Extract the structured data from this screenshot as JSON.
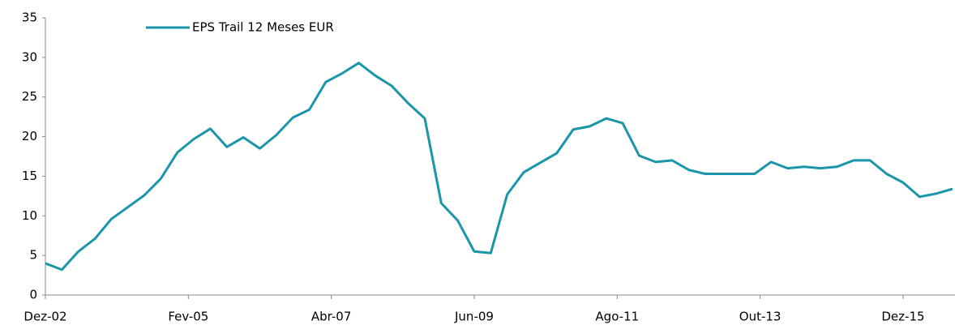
{
  "chart_data": {
    "type": "line",
    "x": [
      0,
      3,
      6,
      9,
      12,
      15,
      18,
      21,
      24,
      27,
      30,
      33,
      36,
      39,
      42,
      45,
      48,
      51,
      54,
      57,
      60,
      63,
      66,
      69,
      72,
      75,
      78,
      81,
      84,
      87,
      90,
      93,
      96,
      99,
      102,
      105,
      108,
      111,
      114,
      117,
      120,
      123,
      126,
      129,
      132,
      135,
      138,
      141,
      144,
      147,
      150,
      153,
      156,
      159,
      162,
      165
    ],
    "series": [
      {
        "name": "EPS Trail 12 Meses EUR",
        "color": "#1b95aa",
        "values": [
          4.0,
          3.2,
          5.5,
          7.1,
          9.6,
          11.1,
          12.6,
          14.7,
          18.0,
          19.7,
          21.0,
          18.7,
          19.9,
          18.5,
          20.2,
          22.4,
          23.4,
          26.9,
          28.0,
          29.3,
          27.7,
          26.4,
          24.2,
          22.3,
          11.6,
          9.4,
          5.5,
          5.3,
          12.7,
          15.5,
          16.7,
          17.9,
          20.9,
          21.3,
          22.3,
          21.7,
          17.6,
          16.8,
          17.0,
          15.8,
          15.3,
          15.3,
          15.3,
          15.3,
          16.8,
          16.0,
          16.2,
          16.0,
          16.2,
          17.0,
          17.0,
          15.3,
          14.2,
          12.4,
          12.8,
          13.4
        ]
      }
    ],
    "xlim": [
      0,
      165
    ],
    "xticks": [
      {
        "value": 0,
        "label": "Dez-02"
      },
      {
        "value": 26,
        "label": "Fev-05"
      },
      {
        "value": 52,
        "label": "Abr-07"
      },
      {
        "value": 78,
        "label": "Jun-09"
      },
      {
        "value": 104,
        "label": "Ago-11"
      },
      {
        "value": 130,
        "label": "Out-13"
      },
      {
        "value": 156,
        "label": "Dez-15"
      }
    ],
    "ylim": [
      0,
      35
    ],
    "yticks": [
      0,
      5,
      10,
      15,
      20,
      25,
      30,
      35
    ],
    "grid": false,
    "legend": "top-left"
  }
}
